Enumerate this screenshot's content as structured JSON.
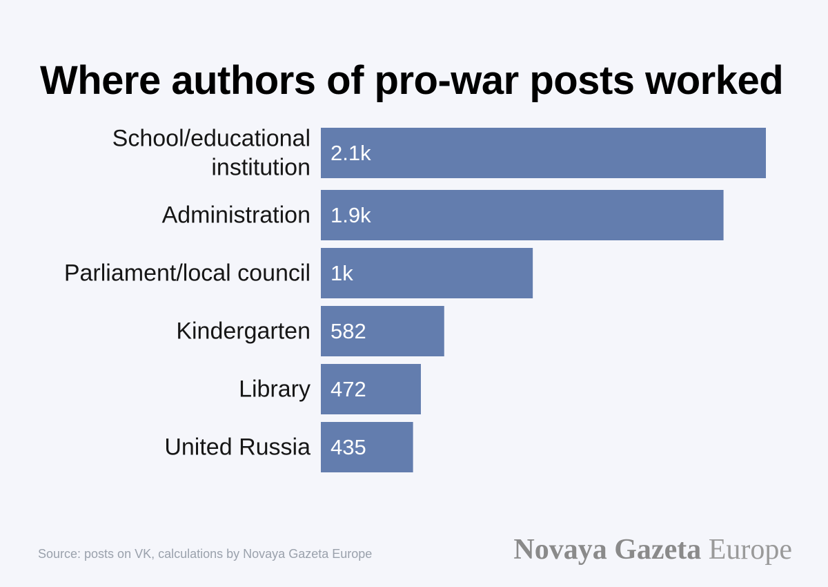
{
  "chart_data": {
    "type": "bar",
    "orientation": "horizontal",
    "title": "Where authors of pro-war posts worked",
    "categories": [
      [
        "School/educational",
        "institution"
      ],
      [
        "Administration"
      ],
      [
        "Parliament/local council"
      ],
      [
        "Kindergarten"
      ],
      [
        "Library"
      ],
      [
        "United Russia"
      ]
    ],
    "values": [
      2100,
      1900,
      1000,
      582,
      472,
      435
    ],
    "value_labels": [
      "2.1k",
      "1.9k",
      "1k",
      "582",
      "472",
      "435"
    ],
    "xlim": [
      0,
      2100
    ],
    "grid": false,
    "bar_color": "#637dae"
  },
  "footer": {
    "source": "Source: posts on VK, calculations by Novaya Gazeta Europe",
    "brand_bold": "Novaya Gazeta",
    "brand_light": "Europe"
  }
}
